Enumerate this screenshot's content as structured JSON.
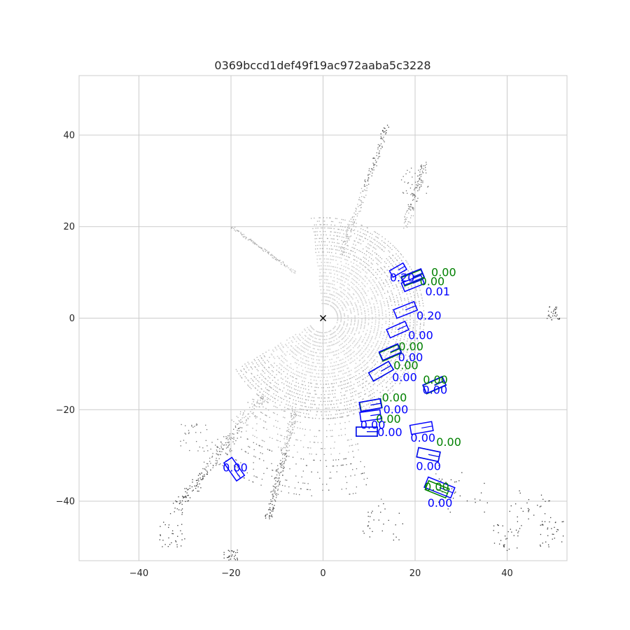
{
  "chart_data": {
    "type": "scatter",
    "title": "0369bccd1def49f19ac972aaba5c3228",
    "xlabel": "",
    "ylabel": "",
    "xlim": [
      -53,
      53
    ],
    "ylim": [
      -53,
      53
    ],
    "xticks": [
      "−40",
      "−20",
      "0",
      "20",
      "40"
    ],
    "xtick_values": [
      -40,
      -20,
      0,
      20,
      40
    ],
    "yticks": [
      "40",
      "20",
      "0",
      "−20",
      "−40"
    ],
    "ytick_values": [
      40,
      20,
      0,
      -20,
      -40
    ],
    "grid": true,
    "ego_marker": {
      "x": 0,
      "y": 0,
      "symbol": "×"
    },
    "colors": {
      "ground_truth": "#008000",
      "prediction": "#0000ff",
      "points_near": "#d3d3d3",
      "points_far": "#3a3a3a",
      "grid": "#cccccc",
      "axes": "#cccccc"
    },
    "ground_truth_boxes": [
      {
        "x": 19.5,
        "y": 8.8,
        "length": 4.6,
        "width": 2.0,
        "heading_deg": -22,
        "score": "0.00"
      },
      {
        "x": 14.6,
        "y": -7.6,
        "length": 4.4,
        "width": 2.0,
        "heading_deg": -24,
        "score": "0.00"
      },
      {
        "x": 12.6,
        "y": -11.6,
        "length": 5.0,
        "width": 2.1,
        "heading_deg": -30,
        "score": "0.00"
      },
      {
        "x": 24.2,
        "y": -14.7,
        "length": 4.6,
        "width": 2.0,
        "heading_deg": -24,
        "score": "0.00"
      },
      {
        "x": 10.4,
        "y": -19.0,
        "length": 4.6,
        "width": 2.0,
        "heading_deg": -10,
        "score": "0.00"
      },
      {
        "x": 9.5,
        "y": -24.8,
        "length": 4.6,
        "width": 2.0,
        "heading_deg": 0,
        "score": "0.00"
      },
      {
        "x": 22.9,
        "y": -29.8,
        "length": 4.8,
        "width": 2.1,
        "heading_deg": 12,
        "score": "0.00"
      },
      {
        "x": 24.8,
        "y": -37.4,
        "length": 4.8,
        "width": 2.1,
        "heading_deg": 22,
        "score": "0.00"
      }
    ],
    "predicted_boxes": [
      {
        "x": 16.3,
        "y": 10.5,
        "length": 3.4,
        "width": 1.6,
        "heading_deg": -30,
        "score": "0.20"
      },
      {
        "x": 19.5,
        "y": 9.0,
        "length": 4.6,
        "width": 2.0,
        "heading_deg": -22,
        "score": "0.00"
      },
      {
        "x": 19.5,
        "y": 7.6,
        "length": 4.6,
        "width": 2.0,
        "heading_deg": -22,
        "score": "0.01"
      },
      {
        "x": 17.9,
        "y": 1.8,
        "length": 4.8,
        "width": 2.0,
        "heading_deg": -22,
        "score": "0.20"
      },
      {
        "x": 16.2,
        "y": -2.5,
        "length": 4.4,
        "width": 2.0,
        "heading_deg": -24,
        "score": "0.00"
      },
      {
        "x": 14.6,
        "y": -7.4,
        "length": 4.4,
        "width": 2.0,
        "heading_deg": -24,
        "score": "0.00"
      },
      {
        "x": 12.6,
        "y": -11.6,
        "length": 5.0,
        "width": 2.1,
        "heading_deg": -30,
        "score": "0.00"
      },
      {
        "x": 24.2,
        "y": -14.6,
        "length": 4.6,
        "width": 2.0,
        "heading_deg": -24,
        "score": "0.00"
      },
      {
        "x": 10.3,
        "y": -19.0,
        "length": 4.6,
        "width": 2.0,
        "heading_deg": -10,
        "score": "0.00"
      },
      {
        "x": 10.3,
        "y": -21.3,
        "length": 4.4,
        "width": 2.0,
        "heading_deg": -8,
        "score": "0.00"
      },
      {
        "x": 9.5,
        "y": -24.8,
        "length": 4.6,
        "width": 2.0,
        "heading_deg": 0,
        "score": "0.00"
      },
      {
        "x": 21.4,
        "y": -24.0,
        "length": 4.8,
        "width": 2.0,
        "heading_deg": -10,
        "score": "0.00"
      },
      {
        "x": 22.9,
        "y": -29.8,
        "length": 4.8,
        "width": 2.1,
        "heading_deg": 12,
        "score": "0.00"
      },
      {
        "x": 25.3,
        "y": -37.0,
        "length": 6.2,
        "width": 2.4,
        "heading_deg": 22,
        "score": "0.00"
      },
      {
        "x": -19.3,
        "y": -33.0,
        "length": 4.8,
        "width": 2.1,
        "heading_deg": 55,
        "score": "0.00"
      }
    ],
    "ground_truth_labels": [
      {
        "x": 23.5,
        "y": 9.2,
        "text": "0.00"
      },
      {
        "x": 21.0,
        "y": 7.2,
        "text": "0.00"
      },
      {
        "x": 16.4,
        "y": -7.0,
        "text": "0.00"
      },
      {
        "x": 15.3,
        "y": -11.2,
        "text": "0.00"
      },
      {
        "x": 21.7,
        "y": -14.3,
        "text": "0.00"
      },
      {
        "x": 12.8,
        "y": -18.2,
        "text": "0.00"
      },
      {
        "x": 11.5,
        "y": -22.9,
        "text": "0.00"
      },
      {
        "x": 24.6,
        "y": -27.9,
        "text": "0.00"
      },
      {
        "x": 22.0,
        "y": -37.7,
        "text": "0.00"
      }
    ],
    "predicted_labels": [
      {
        "x": 14.5,
        "y": 8.0,
        "text": "0.20"
      },
      {
        "x": 22.2,
        "y": 5.0,
        "text": "0.01"
      },
      {
        "x": 20.3,
        "y": -0.3,
        "text": "0.20"
      },
      {
        "x": 18.5,
        "y": -4.6,
        "text": "0.00"
      },
      {
        "x": 16.3,
        "y": -9.4,
        "text": "0.00"
      },
      {
        "x": 15.0,
        "y": -13.8,
        "text": "0.00"
      },
      {
        "x": 21.6,
        "y": -16.5,
        "text": "0.00"
      },
      {
        "x": 13.1,
        "y": -20.8,
        "text": "0.00"
      },
      {
        "x": 8.1,
        "y": -24.2,
        "text": "0.00"
      },
      {
        "x": 11.8,
        "y": -25.8,
        "text": "0.00"
      },
      {
        "x": 19.0,
        "y": -27.0,
        "text": "0.00"
      },
      {
        "x": 20.2,
        "y": -33.2,
        "text": "0.00"
      },
      {
        "x": 22.7,
        "y": -41.2,
        "text": "0.00"
      },
      {
        "x": -21.8,
        "y": -33.5,
        "text": "0.00"
      }
    ]
  }
}
